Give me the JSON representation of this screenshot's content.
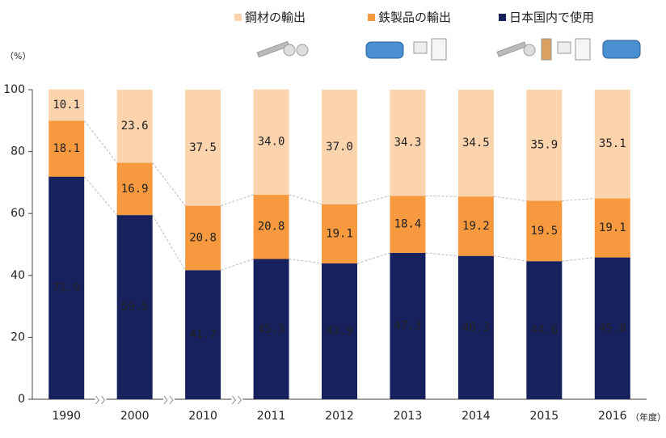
{
  "chart_data": {
    "type": "stacked-bar",
    "categories": [
      "1990",
      "2000",
      "2010",
      "2011",
      "2012",
      "2013",
      "2014",
      "2015",
      "2016"
    ],
    "series": [
      {
        "name": "日本国内で使用",
        "color": "#16215e",
        "values": [
          71.9,
          59.5,
          41.7,
          45.3,
          43.9,
          47.3,
          46.3,
          44.6,
          45.8
        ]
      },
      {
        "name": "鉄製品の輸出",
        "color": "#f6993f",
        "values": [
          18.1,
          16.9,
          20.8,
          20.8,
          19.1,
          18.4,
          19.2,
          19.5,
          19.1
        ]
      },
      {
        "name": "鋼材の輸出",
        "color": "#fbd3ad",
        "values": [
          10.1,
          23.6,
          37.5,
          34.0,
          37.0,
          34.3,
          34.5,
          35.9,
          35.1
        ],
        "value_labels": [
          "10.1",
          "23.6",
          "37.5",
          "34.0",
          "37.0",
          "34.3",
          "34.5",
          "35.9",
          "35.1"
        ]
      }
    ],
    "ylim": [
      0,
      100
    ],
    "yticks": [
      0,
      20,
      40,
      60,
      80,
      100
    ],
    "y_unit": "（%）",
    "x_unit": "（年度）",
    "grid": false
  }
}
